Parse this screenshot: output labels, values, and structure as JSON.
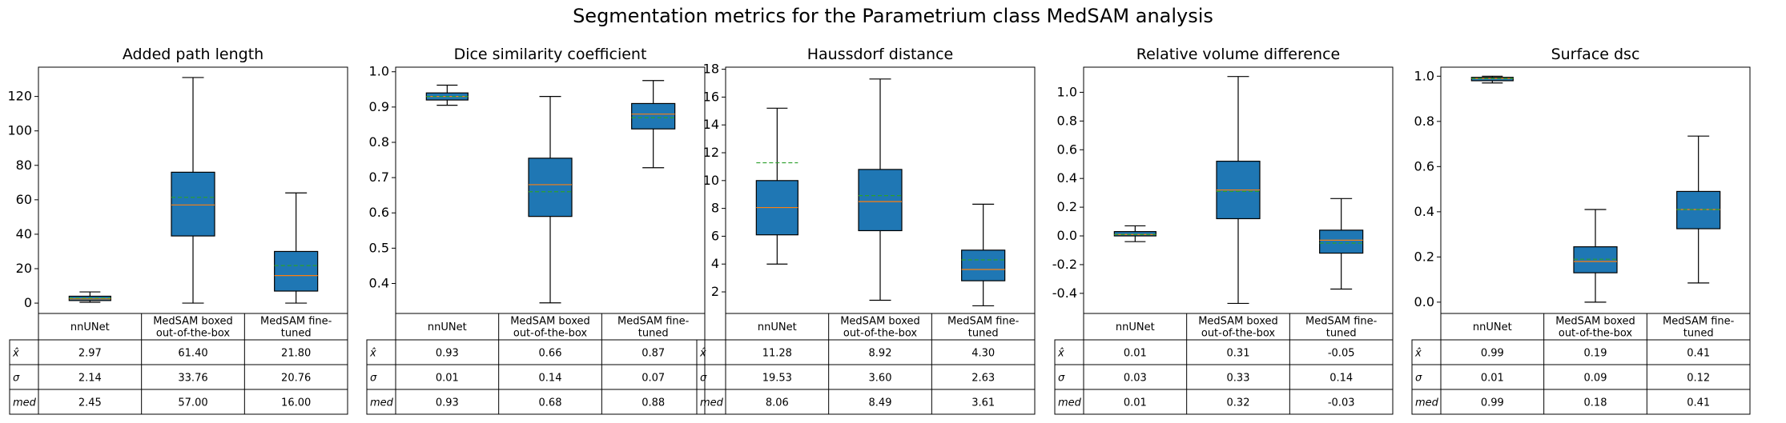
{
  "title": "Segmentation metrics for the Parametrium class MedSAM analysis",
  "chart_data": [
    {
      "type": "box",
      "title": "Added path length",
      "categories": [
        "nnUNet",
        "MedSAM boxed\nout-of-the-box",
        "MedSAM fine-\ntuned"
      ],
      "ylim": [
        -6,
        137
      ],
      "yticks": [
        0,
        20,
        40,
        60,
        80,
        100,
        120
      ],
      "boxes": [
        {
          "whislo": 0.5,
          "q1": 1.5,
          "med": 2.45,
          "q3": 4.0,
          "whishi": 6.5,
          "mean": 2.97
        },
        {
          "whislo": 0,
          "q1": 39,
          "med": 57,
          "q3": 76,
          "whishi": 131,
          "mean": 61.4
        },
        {
          "whislo": 0,
          "q1": 7,
          "med": 16,
          "q3": 30,
          "whishi": 64,
          "mean": 21.8
        }
      ],
      "table": {
        "row_labels": [
          "x̂",
          "σ",
          "med"
        ],
        "rows": [
          [
            "2.97",
            "61.40",
            "21.80"
          ],
          [
            "2.14",
            "33.76",
            "20.76"
          ],
          [
            "2.45",
            "57.00",
            "16.00"
          ]
        ]
      }
    },
    {
      "type": "box",
      "title": "Dice similarity coefficient",
      "categories": [
        "nnUNet",
        "MedSAM boxed\nout-of-the-box",
        "MedSAM fine-\ntuned"
      ],
      "ylim": [
        0.315,
        1.013
      ],
      "yticks": [
        0.4,
        0.5,
        0.6,
        0.7,
        0.8,
        0.9,
        1.0
      ],
      "boxes": [
        {
          "whislo": 0.905,
          "q1": 0.92,
          "med": 0.93,
          "q3": 0.94,
          "whishi": 0.962,
          "mean": 0.93
        },
        {
          "whislo": 0.345,
          "q1": 0.59,
          "med": 0.68,
          "q3": 0.755,
          "whishi": 0.93,
          "mean": 0.66
        },
        {
          "whislo": 0.728,
          "q1": 0.838,
          "med": 0.88,
          "q3": 0.91,
          "whishi": 0.975,
          "mean": 0.87
        }
      ],
      "table": {
        "row_labels": [
          "x̂",
          "σ",
          "med"
        ],
        "rows": [
          [
            "0.93",
            "0.66",
            "0.87"
          ],
          [
            "0.01",
            "0.14",
            "0.07"
          ],
          [
            "0.93",
            "0.68",
            "0.88"
          ]
        ]
      }
    },
    {
      "type": "box",
      "title": "Haussdorf distance",
      "categories": [
        "nnUNet",
        "MedSAM boxed\nout-of-the-box",
        "MedSAM fine-\ntuned"
      ],
      "ylim": [
        0.45,
        18.15
      ],
      "yticks": [
        2,
        4,
        6,
        8,
        10,
        12,
        14,
        16,
        18
      ],
      "boxes": [
        {
          "whislo": 4.0,
          "q1": 6.1,
          "med": 8.06,
          "q3": 10.0,
          "whishi": 15.2,
          "mean": 11.28
        },
        {
          "whislo": 1.4,
          "q1": 6.4,
          "med": 8.49,
          "q3": 10.8,
          "whishi": 17.3,
          "mean": 8.92
        },
        {
          "whislo": 1.0,
          "q1": 2.8,
          "med": 3.61,
          "q3": 5.0,
          "whishi": 8.3,
          "mean": 4.3
        }
      ],
      "table": {
        "row_labels": [
          "x̂",
          "σ",
          "med"
        ],
        "rows": [
          [
            "11.28",
            "8.92",
            "4.30"
          ],
          [
            "19.53",
            "3.60",
            "2.63"
          ],
          [
            "8.06",
            "8.49",
            "3.61"
          ]
        ]
      }
    },
    {
      "type": "box",
      "title": "Relative volume difference",
      "categories": [
        "nnUNet",
        "MedSAM boxed\nout-of-the-box",
        "MedSAM fine-\ntuned"
      ],
      "ylim": [
        -0.54,
        1.175
      ],
      "yticks": [
        -0.4,
        -0.2,
        0.0,
        0.2,
        0.4,
        0.6,
        0.8,
        1.0
      ],
      "boxes": [
        {
          "whislo": -0.04,
          "q1": 0.0,
          "med": 0.01,
          "q3": 0.03,
          "whishi": 0.07,
          "mean": 0.01
        },
        {
          "whislo": -0.47,
          "q1": 0.12,
          "med": 0.32,
          "q3": 0.52,
          "whishi": 1.11,
          "mean": 0.31
        },
        {
          "whislo": -0.37,
          "q1": -0.12,
          "med": -0.03,
          "q3": 0.04,
          "whishi": 0.26,
          "mean": -0.05
        }
      ],
      "table": {
        "row_labels": [
          "x̂",
          "σ",
          "med"
        ],
        "rows": [
          [
            "0.01",
            "0.31",
            "-0.05"
          ],
          [
            "0.03",
            "0.33",
            "0.14"
          ],
          [
            "0.01",
            "0.32",
            "-0.03"
          ]
        ]
      }
    },
    {
      "type": "box",
      "title": "Surface dsc",
      "categories": [
        "nnUNet",
        "MedSAM boxed\nout-of-the-box",
        "MedSAM fine-\ntuned"
      ],
      "ylim": [
        -0.05,
        1.04
      ],
      "yticks": [
        0.0,
        0.2,
        0.4,
        0.6,
        0.8,
        1.0
      ],
      "boxes": [
        {
          "whislo": 0.97,
          "q1": 0.98,
          "med": 0.99,
          "q3": 0.995,
          "whishi": 1.0,
          "mean": 0.99
        },
        {
          "whislo": 0.0,
          "q1": 0.13,
          "med": 0.18,
          "q3": 0.245,
          "whishi": 0.41,
          "mean": 0.19
        },
        {
          "whislo": 0.085,
          "q1": 0.325,
          "med": 0.41,
          "q3": 0.49,
          "whishi": 0.735,
          "mean": 0.41
        }
      ],
      "table": {
        "row_labels": [
          "x̂",
          "σ",
          "med"
        ],
        "rows": [
          [
            "0.99",
            "0.19",
            "0.41"
          ],
          [
            "0.01",
            "0.09",
            "0.12"
          ],
          [
            "0.99",
            "0.18",
            "0.41"
          ]
        ]
      }
    }
  ],
  "colors": {
    "box_fill": "#1f77b4",
    "median_line": "#ff7f0e",
    "mean_line": "#2ca02c",
    "axes": "#000000"
  }
}
